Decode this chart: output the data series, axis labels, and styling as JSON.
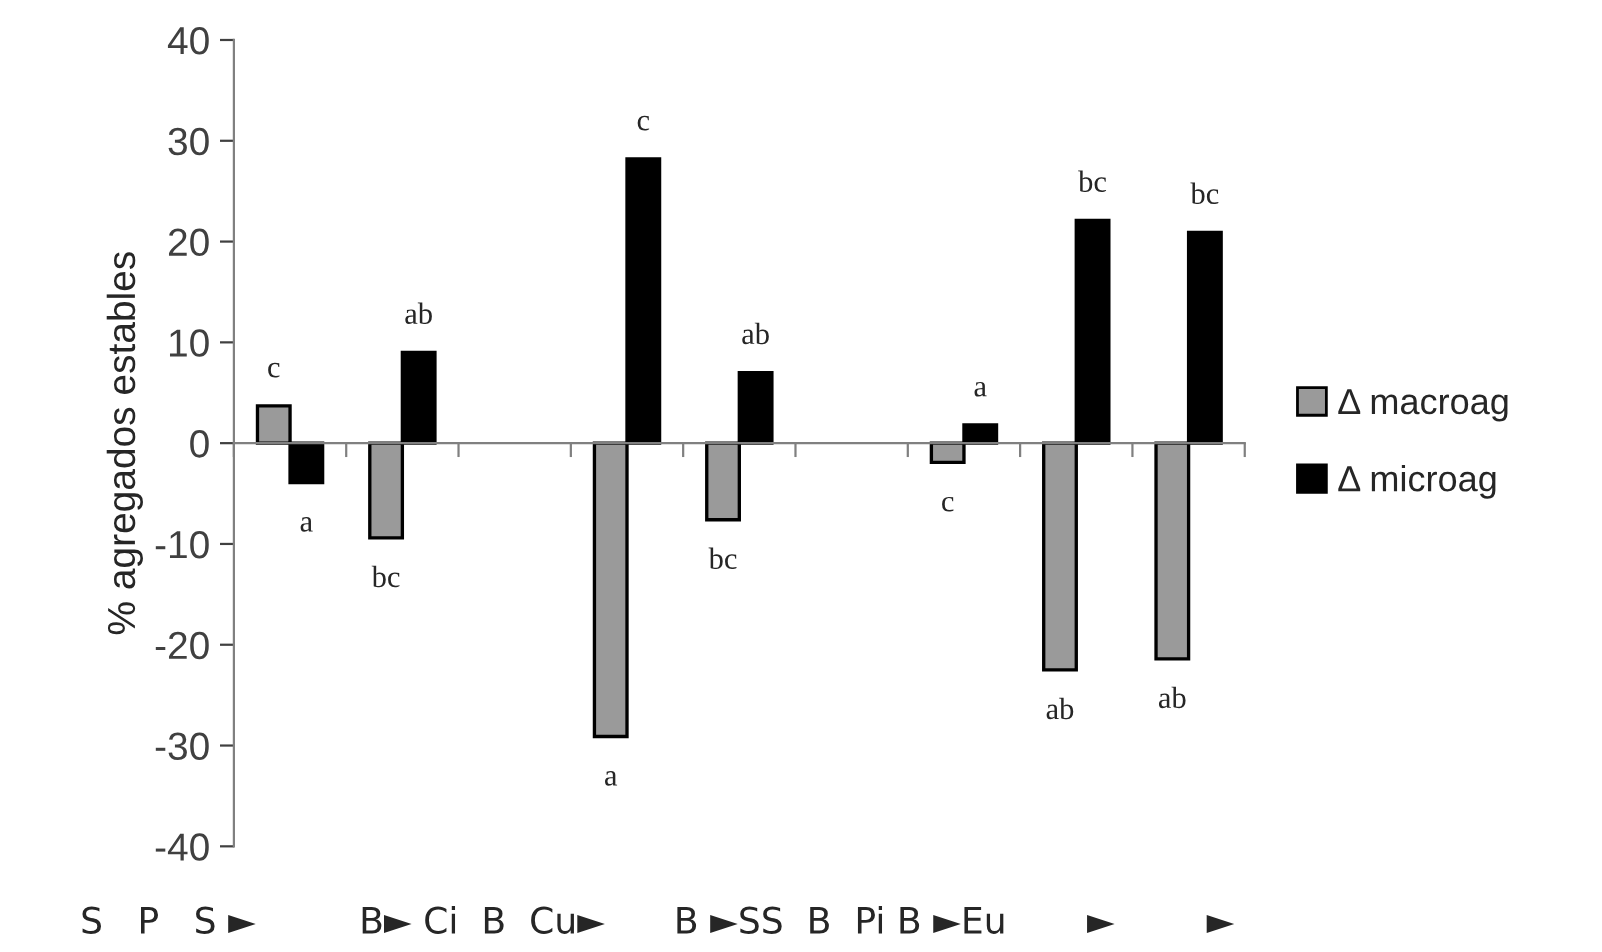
{
  "chart_data": {
    "type": "bar",
    "ylabel": "% agregados estables",
    "categories": [
      null,
      null,
      null,
      null,
      null,
      null,
      null,
      null,
      null
    ],
    "series": [
      {
        "name": "Δ macroag",
        "color": "#9a9a9a",
        "values": [
          3.7,
          -9.4,
          null,
          -29.1,
          -7.6,
          null,
          -1.9,
          -22.5,
          -21.4
        ],
        "value_labels": [
          "c",
          "bc",
          null,
          "a",
          "bc",
          null,
          "c",
          "ab",
          "ab"
        ]
      },
      {
        "name": "Δ microag",
        "color": "#000000",
        "values": [
          -3.9,
          9.0,
          null,
          28.2,
          7.0,
          null,
          1.8,
          22.1,
          20.9
        ],
        "value_labels": [
          "a",
          "ab",
          null,
          "c",
          "ab",
          null,
          "a",
          "bc",
          "bc"
        ]
      }
    ],
    "ylim": [
      -40,
      40
    ],
    "yticks": [
      -40,
      -30,
      -20,
      -10,
      0,
      10,
      20,
      30,
      40
    ],
    "legend": "right",
    "annotations": [
      "S   P   S ►         B► Ci  B  Cu►      B ►SS  B  Pi B ►Eu       ►        ►"
    ]
  }
}
